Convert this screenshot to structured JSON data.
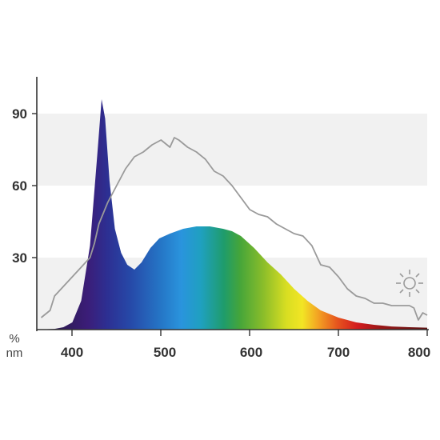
{
  "chart_data": {
    "type": "area",
    "xlabel": "nm",
    "ylabel": "%",
    "xlim": [
      360,
      800
    ],
    "ylim": [
      0,
      100
    ],
    "x_ticks": [
      "400",
      "500",
      "600",
      "700",
      "800"
    ],
    "y_ticks": [
      "30",
      "60",
      "90"
    ],
    "grid_bands": "alternating horizontal bands 0-30 and 60-90",
    "fill": "visible-spectrum gradient (violet to red)",
    "series": [
      {
        "points": [
          [
            360,
            0
          ],
          [
            380,
            0.3
          ],
          [
            390,
            1
          ],
          [
            400,
            3
          ],
          [
            410,
            12
          ],
          [
            420,
            35
          ],
          [
            428,
            72
          ],
          [
            433,
            96
          ],
          [
            437,
            88
          ],
          [
            442,
            62
          ],
          [
            448,
            42
          ],
          [
            455,
            32
          ],
          [
            462,
            27
          ],
          [
            470,
            25
          ],
          [
            478,
            28
          ],
          [
            488,
            34
          ],
          [
            498,
            38
          ],
          [
            510,
            40
          ],
          [
            525,
            42
          ],
          [
            540,
            43
          ],
          [
            555,
            43
          ],
          [
            570,
            42
          ],
          [
            580,
            41
          ],
          [
            590,
            39
          ],
          [
            605,
            34
          ],
          [
            620,
            28
          ],
          [
            635,
            23
          ],
          [
            650,
            17
          ],
          [
            665,
            12
          ],
          [
            680,
            8
          ],
          [
            700,
            5
          ],
          [
            720,
            3
          ],
          [
            740,
            2
          ],
          [
            760,
            1.3
          ],
          [
            780,
            1
          ],
          [
            800,
            0.8
          ]
        ]
      },
      {
        "points": [
          [
            365,
            5
          ],
          [
            375,
            8
          ],
          [
            380,
            14
          ],
          [
            390,
            18
          ],
          [
            400,
            22
          ],
          [
            410,
            26
          ],
          [
            420,
            30
          ],
          [
            425,
            36
          ],
          [
            430,
            44
          ],
          [
            440,
            53
          ],
          [
            450,
            60
          ],
          [
            460,
            67
          ],
          [
            470,
            72
          ],
          [
            480,
            74
          ],
          [
            490,
            77
          ],
          [
            500,
            79
          ],
          [
            510,
            76
          ],
          [
            515,
            80
          ],
          [
            520,
            79
          ],
          [
            530,
            76
          ],
          [
            540,
            74
          ],
          [
            550,
            71
          ],
          [
            560,
            66
          ],
          [
            570,
            64
          ],
          [
            580,
            60
          ],
          [
            590,
            55
          ],
          [
            600,
            50
          ],
          [
            610,
            48
          ],
          [
            620,
            47
          ],
          [
            630,
            44
          ],
          [
            640,
            42
          ],
          [
            650,
            40
          ],
          [
            660,
            39
          ],
          [
            670,
            35
          ],
          [
            680,
            27
          ],
          [
            690,
            26
          ],
          [
            700,
            22
          ],
          [
            710,
            17
          ],
          [
            720,
            14
          ],
          [
            730,
            13
          ],
          [
            740,
            11
          ],
          [
            750,
            11
          ],
          [
            760,
            10
          ],
          [
            770,
            10
          ],
          [
            780,
            10
          ],
          [
            785,
            9
          ],
          [
            790,
            4
          ],
          [
            795,
            7
          ],
          [
            800,
            6
          ]
        ]
      }
    ]
  },
  "icons": {
    "sun": "sun-icon"
  },
  "colors": {
    "band": "#f1f1f1",
    "axis": "#333333",
    "daylight_line": "#9a9a9a"
  }
}
